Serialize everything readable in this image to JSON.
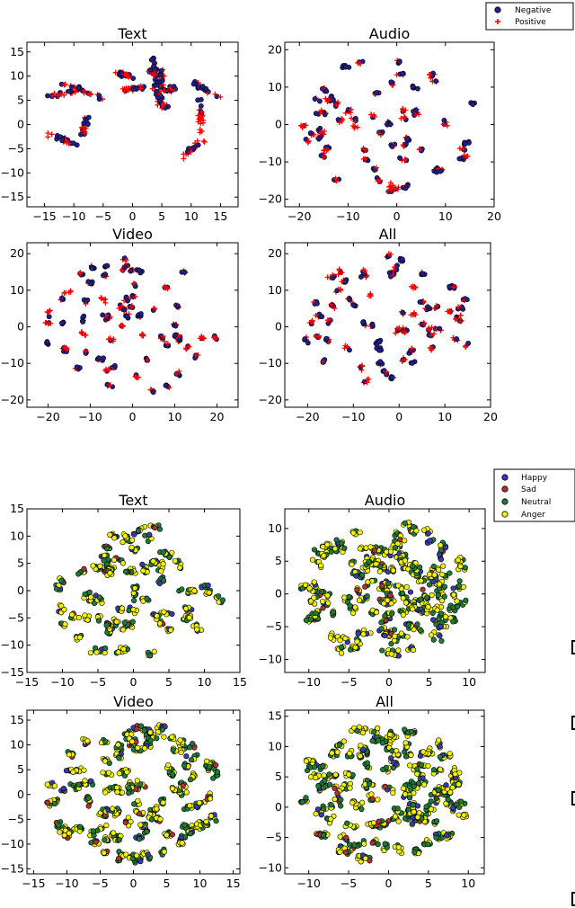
{
  "figure_top": {
    "legend": [
      {
        "label": "Negative",
        "marker": "circle",
        "color": "#1f1f8f"
      },
      {
        "label": "Positive",
        "marker": "plus",
        "color": "#ff0000"
      }
    ]
  },
  "figure_bottom": {
    "legend": [
      {
        "label": "Happy",
        "color": "#3a3ab0"
      },
      {
        "label": "Sad",
        "color": "#b03030"
      },
      {
        "label": "Neutral",
        "color": "#1f7a3a"
      },
      {
        "label": "Anger",
        "color": "#f2f200"
      }
    ]
  },
  "chart_data": [
    {
      "type": "scatter",
      "title": "Text",
      "group": "sentiment",
      "xlim": [
        -18,
        18
      ],
      "ylim": [
        -17,
        17
      ],
      "xticks": [
        -15,
        -10,
        -5,
        0,
        5,
        10,
        15
      ],
      "yticks": [
        15,
        10,
        5,
        0,
        -5,
        -10,
        -15
      ],
      "series": [
        {
          "name": "Negative",
          "points_note": "t-SNE clusters"
        },
        {
          "name": "Positive"
        }
      ],
      "seed": 11
    },
    {
      "type": "scatter",
      "title": "Audio",
      "group": "sentiment",
      "xlim": [
        -23,
        20
      ],
      "ylim": [
        -22,
        22
      ],
      "xticks": [
        -20,
        -10,
        0,
        10,
        20
      ],
      "yticks": [
        20,
        10,
        0,
        -10,
        -20
      ],
      "series": [
        {
          "name": "Negative"
        },
        {
          "name": "Positive"
        }
      ],
      "seed": 23
    },
    {
      "type": "scatter",
      "title": "Video",
      "group": "sentiment",
      "xlim": [
        -25,
        25
      ],
      "ylim": [
        -22,
        23
      ],
      "xticks": [
        -20,
        -10,
        0,
        10,
        20
      ],
      "yticks": [
        20,
        10,
        0,
        -10,
        -20
      ],
      "series": [
        {
          "name": "Negative"
        },
        {
          "name": "Positive"
        }
      ],
      "seed": 37
    },
    {
      "type": "scatter",
      "title": "All",
      "group": "sentiment",
      "xlim": [
        -25,
        20
      ],
      "ylim": [
        -22,
        23
      ],
      "xticks": [
        -20,
        -10,
        0,
        10,
        20
      ],
      "yticks": [
        20,
        10,
        0,
        -10,
        -20
      ],
      "series": [
        {
          "name": "Negative"
        },
        {
          "name": "Positive"
        }
      ],
      "seed": 41
    },
    {
      "type": "scatter",
      "title": "Text",
      "group": "emotion",
      "xlim": [
        -15,
        15
      ],
      "ylim": [
        -15,
        15
      ],
      "xticks": [
        -15,
        -10,
        -5,
        0,
        5,
        10,
        15
      ],
      "yticks": [
        15,
        10,
        5,
        0,
        -5,
        -10,
        -15
      ],
      "series": [
        {
          "name": "Happy"
        },
        {
          "name": "Sad"
        },
        {
          "name": "Neutral"
        },
        {
          "name": "Anger"
        }
      ],
      "seed": 53
    },
    {
      "type": "scatter",
      "title": "Audio",
      "group": "emotion",
      "xlim": [
        -13,
        12
      ],
      "ylim": [
        -12,
        13
      ],
      "xticks": [
        -10,
        -5,
        0,
        5,
        10
      ],
      "yticks": [
        10,
        5,
        0,
        -5,
        -10
      ],
      "series": [
        {
          "name": "Happy"
        },
        {
          "name": "Sad"
        },
        {
          "name": "Neutral"
        },
        {
          "name": "Anger"
        }
      ],
      "seed": 67
    },
    {
      "type": "scatter",
      "title": "Video",
      "group": "emotion",
      "xlim": [
        -16,
        16
      ],
      "ylim": [
        -16,
        17
      ],
      "xticks": [
        -15,
        -10,
        -5,
        0,
        5,
        10,
        15
      ],
      "yticks": [
        15,
        10,
        5,
        0,
        -5,
        -10,
        -15
      ],
      "series": [
        {
          "name": "Happy"
        },
        {
          "name": "Sad"
        },
        {
          "name": "Neutral"
        },
        {
          "name": "Anger"
        }
      ],
      "seed": 71
    },
    {
      "type": "scatter",
      "title": "All",
      "group": "emotion",
      "xlim": [
        -13,
        12
      ],
      "ylim": [
        -11,
        16
      ],
      "xticks": [
        -10,
        -5,
        0,
        5,
        10
      ],
      "yticks": [
        15,
        10,
        5,
        0,
        -5,
        -10
      ],
      "series": [
        {
          "name": "Happy"
        },
        {
          "name": "Sad"
        },
        {
          "name": "Neutral"
        },
        {
          "name": "Anger"
        }
      ],
      "seed": 83
    }
  ]
}
